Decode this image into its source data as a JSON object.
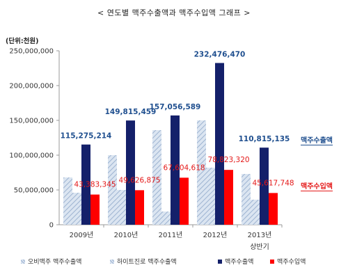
{
  "title": "< 연도별 맥주수출액과 맥주수입액 그래프 >",
  "unit_label": "(단위:천원)",
  "side_legend": {
    "export": "맥주수출액",
    "import": "맥주수입액"
  },
  "colors": {
    "obi": "#b8c9e0",
    "hite": "#b8c9e0",
    "export": "#14206a",
    "import": "#ff0000",
    "export_label": "#1f4f8f",
    "import_label": "#e41818"
  },
  "chart_data": {
    "type": "bar",
    "categories": [
      "2009년",
      "2010년",
      "2011년",
      "2012년",
      "2013년\n상반기"
    ],
    "series": [
      {
        "name": "오비맥주 맥주수출액",
        "values": [
          68000000,
          100000000,
          136000000,
          150000000,
          73000000
        ]
      },
      {
        "name": "하이트진로 맥주수출액",
        "values": [
          46000000,
          50000000,
          19000000,
          82000000,
          36000000
        ]
      },
      {
        "name": "맥주수출액",
        "values": [
          115275214,
          149815459,
          157056589,
          232476470,
          110815135
        ]
      },
      {
        "name": "맥주수입액",
        "values": [
          43383345,
          49626875,
          67604618,
          78823320,
          45617748
        ]
      }
    ],
    "data_labels": {
      "맥주수출액": [
        "115,275,214",
        "149,815,459",
        "157,056,589",
        "232,476,470",
        "110,815,135"
      ],
      "맥주수입액": [
        "43,383,345",
        "49,626,875",
        "67,604,618",
        "78,823,320",
        "45,617,748"
      ]
    },
    "y_ticks": [
      "0",
      "50,000,000",
      "100,000,000",
      "150,000,000",
      "200,000,000",
      "250,000,000"
    ],
    "ylim": [
      0,
      250000000
    ],
    "xlabel": "",
    "ylabel": "",
    "legend": "bottom",
    "grid": false
  }
}
